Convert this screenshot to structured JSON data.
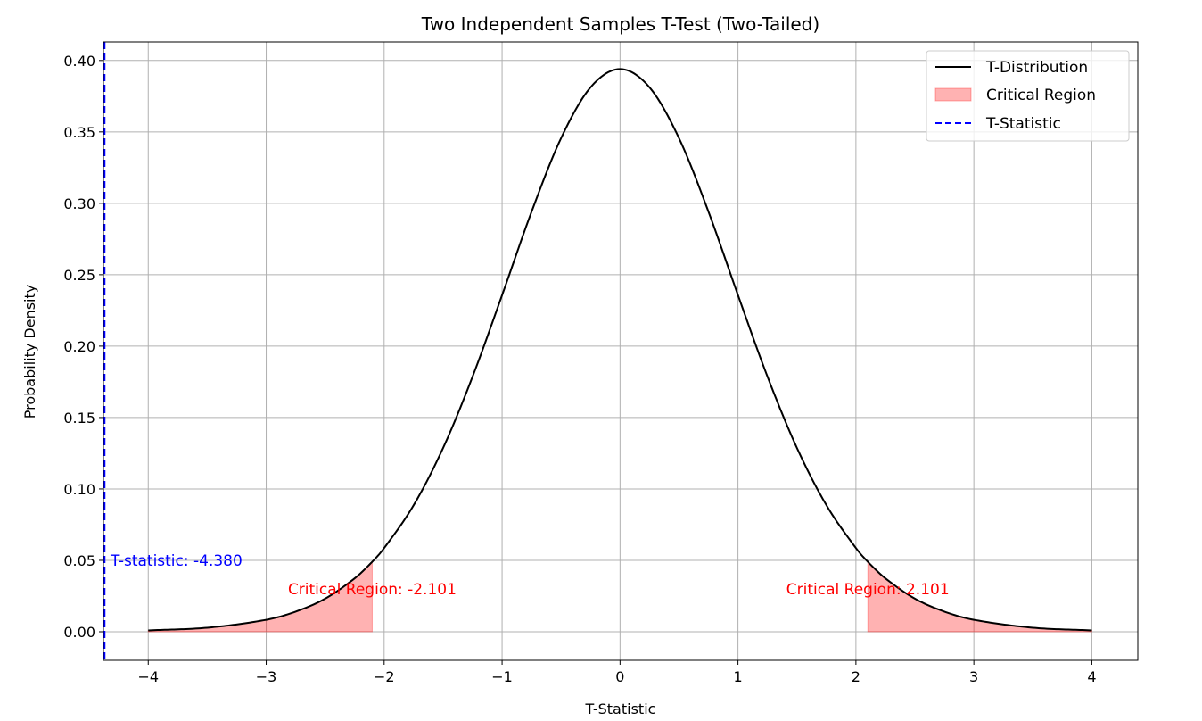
{
  "chart_data": {
    "type": "line",
    "title": "Two Independent Samples T-Test (Two-Tailed)",
    "xlabel": "T-Statistic",
    "ylabel": "Probability Density",
    "xlim": [
      -4.38,
      4.39
    ],
    "ylim": [
      -0.02,
      0.413
    ],
    "xticks": [
      -4,
      -3,
      -2,
      -1,
      0,
      1,
      2,
      3,
      4
    ],
    "xtick_labels": [
      "−4",
      "−3",
      "−2",
      "−1",
      "0",
      "1",
      "2",
      "3",
      "4"
    ],
    "yticks": [
      0.0,
      0.05,
      0.1,
      0.15,
      0.2,
      0.25,
      0.3,
      0.35,
      0.4
    ],
    "ytick_labels": [
      "0.00",
      "0.05",
      "0.10",
      "0.15",
      "0.20",
      "0.25",
      "0.30",
      "0.35",
      "0.40"
    ],
    "grid": true,
    "legend_position": "top-right",
    "series": [
      {
        "name": "T-Distribution",
        "color": "#000000",
        "x": [
          -4,
          -3.5,
          -3,
          -2.75,
          -2.5,
          -2.25,
          -2.101,
          -2,
          -1.75,
          -1.5,
          -1.25,
          -1,
          -0.75,
          -0.5,
          -0.25,
          0,
          0.25,
          0.5,
          0.75,
          1,
          1.25,
          1.5,
          1.75,
          2,
          2.101,
          2.25,
          2.5,
          2.75,
          3,
          3.5,
          4
        ],
        "y": [
          0.00094,
          0.00284,
          0.00837,
          0.0141,
          0.0232,
          0.0374,
          0.049,
          0.0586,
          0.0886,
          0.1287,
          0.1787,
          0.2357,
          0.2941,
          0.3456,
          0.3812,
          0.394,
          0.3812,
          0.3456,
          0.2941,
          0.2357,
          0.1787,
          0.1287,
          0.0886,
          0.0586,
          0.049,
          0.0374,
          0.0232,
          0.0141,
          0.00837,
          0.00284,
          0.00094
        ]
      }
    ],
    "critical_region": {
      "name": "Critical Region",
      "color": "#ff0000",
      "alpha": 0.3,
      "left": [
        -4,
        -2.101
      ],
      "right": [
        2.101,
        4
      ]
    },
    "t_statistic": {
      "name": "T-Statistic",
      "value": -4.38,
      "color": "#0000ff",
      "style": "dashed"
    },
    "annotations": [
      {
        "text": "T-statistic: -4.380",
        "x": -4.38,
        "y": 0.05,
        "color": "#0000ff"
      },
      {
        "text": "Critical Region: -2.101",
        "x": -2.101,
        "y": 0.03,
        "color": "#ff0000"
      },
      {
        "text": "Critical Region: 2.101",
        "x": 2.101,
        "y": 0.03,
        "color": "#ff0000"
      }
    ],
    "legend": [
      "T-Distribution",
      "Critical Region",
      "T-Statistic"
    ]
  }
}
